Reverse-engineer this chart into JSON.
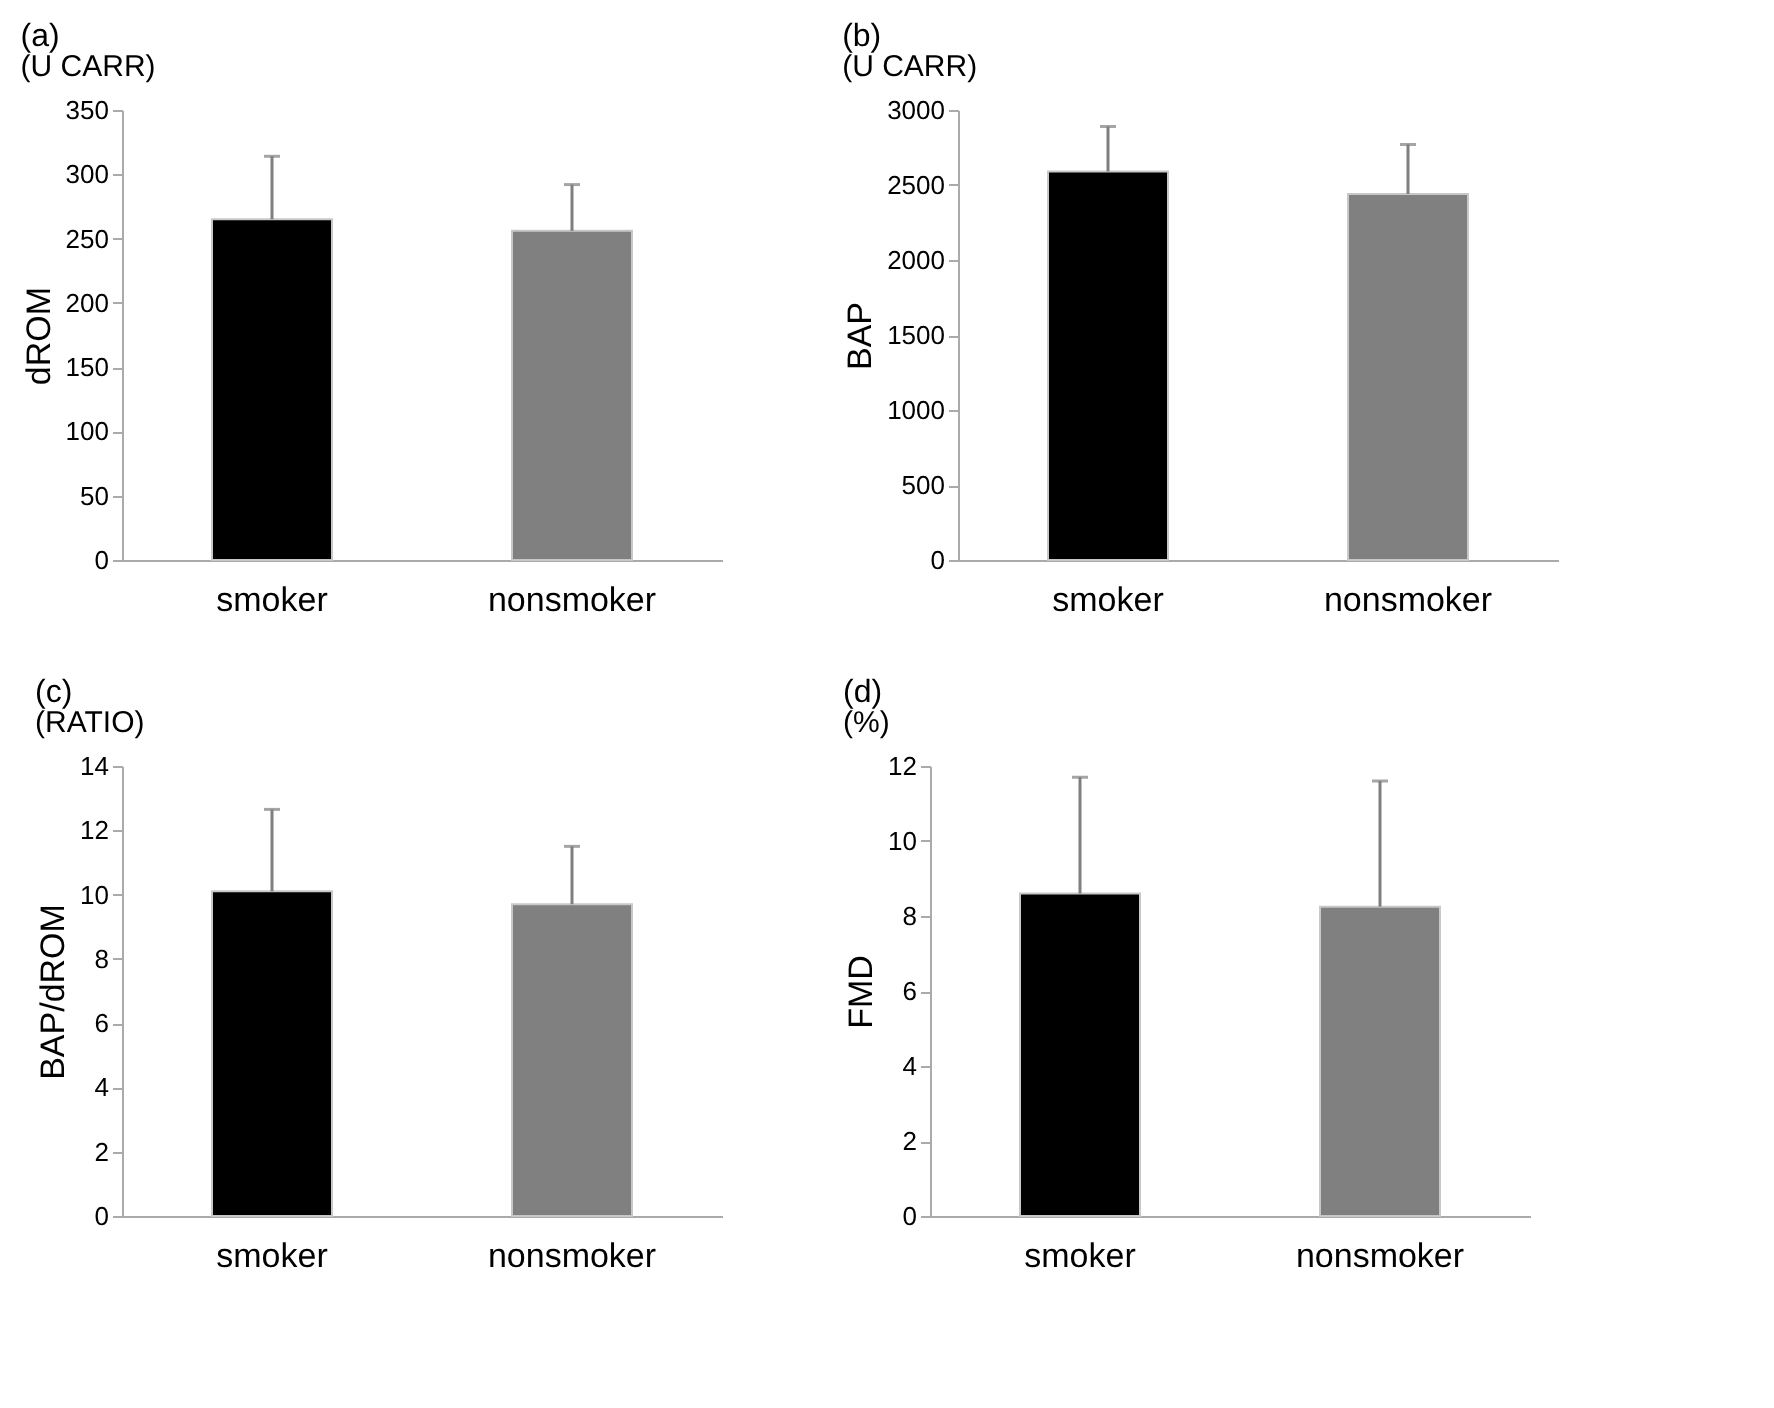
{
  "chart_data": [
    {
      "type": "bar",
      "title": "(a)",
      "subtitle": "(U CARR)",
      "ylabel": "dROM",
      "categories": [
        "smoker",
        "nonsmoker"
      ],
      "values": [
        265,
        256
      ],
      "colors": [
        "#000000",
        "#808080"
      ],
      "errors": [
        [
          265,
          314
        ],
        [
          256,
          292
        ]
      ],
      "ylim": [
        0,
        350
      ],
      "yticks": [
        0,
        50,
        100,
        150,
        200,
        250,
        300,
        350
      ],
      "grid": false
    },
    {
      "type": "bar",
      "title": "(b)",
      "subtitle": "(U CARR)",
      "ylabel": "BAP",
      "categories": [
        "smoker",
        "nonsmoker"
      ],
      "values": [
        2590,
        2440
      ],
      "colors": [
        "#000000",
        "#808080"
      ],
      "errors": [
        [
          2590,
          2890
        ],
        [
          2440,
          2770
        ]
      ],
      "ylim": [
        0,
        3000
      ],
      "yticks": [
        0,
        500,
        1000,
        1500,
        2000,
        2500,
        3000
      ],
      "grid": false
    },
    {
      "type": "bar",
      "title": "(c)",
      "subtitle": "(RATIO)",
      "ylabel": "BAP/dROM",
      "categories": [
        "smoker",
        "nonsmoker"
      ],
      "values": [
        10.1,
        9.7
      ],
      "colors": [
        "#000000",
        "#808080"
      ],
      "errors": [
        [
          10.1,
          12.65
        ],
        [
          9.7,
          11.5
        ]
      ],
      "ylim": [
        0,
        14
      ],
      "yticks": [
        0,
        2,
        4,
        6,
        8,
        10,
        12,
        14
      ],
      "grid": false
    },
    {
      "type": "bar",
      "title": "(d)",
      "subtitle": "(%)",
      "ylabel": "FMD",
      "categories": [
        "smoker",
        "nonsmoker"
      ],
      "values": [
        8.6,
        8.25
      ],
      "colors": [
        "#000000",
        "#808080"
      ],
      "errors": [
        [
          8.6,
          11.7
        ],
        [
          8.25,
          11.6
        ]
      ],
      "ylim": [
        0,
        12
      ],
      "yticks": [
        0,
        2,
        4,
        6,
        8,
        10,
        12
      ],
      "grid": false
    }
  ]
}
